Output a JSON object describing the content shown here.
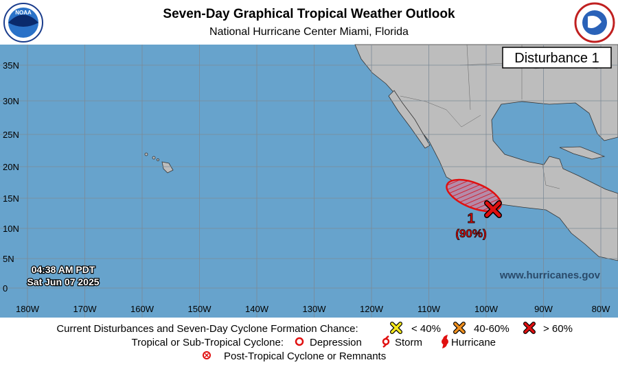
{
  "header": {
    "title": "Seven-Day Graphical Tropical Weather Outlook",
    "subtitle": "National Hurricane Center  Miami, Florida"
  },
  "map": {
    "panel_label": "Disturbance 1",
    "latitude_labels": [
      "35N",
      "30N",
      "25N",
      "20N",
      "15N",
      "10N",
      "5N",
      "0"
    ],
    "longitude_labels": [
      "180W",
      "170W",
      "160W",
      "150W",
      "140W",
      "130W",
      "120W",
      "110W",
      "100W",
      "90W",
      "80W"
    ],
    "timestamp": {
      "time": "04:38 AM PDT",
      "date": "Sat Jun 07 2025"
    },
    "website": "www.hurricanes.gov",
    "disturbances": [
      {
        "id": "1",
        "chance": "(90%)"
      }
    ]
  },
  "legend": {
    "row1": {
      "label": "Current Disturbances and Seven-Day Cyclone Formation Chance:",
      "items": [
        "< 40%",
        "40-60%",
        "> 60%"
      ]
    },
    "row2": {
      "label": "Tropical or Sub-Tropical Cyclone:",
      "items": [
        "Depression",
        "Storm",
        "Hurricane"
      ]
    },
    "row3": "Post-Tropical Cyclone or Remnants"
  }
}
